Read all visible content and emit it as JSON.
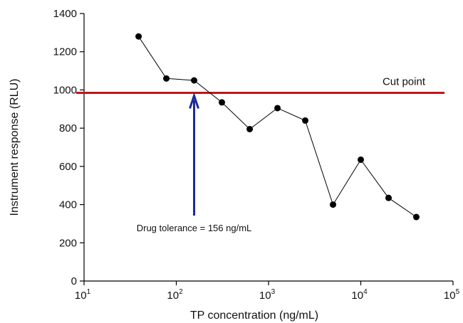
{
  "chart_data": {
    "type": "line",
    "xlabel": "TP concentration (ng/mL)",
    "ylabel": "Instrument response (RLU)",
    "x_scale": "log",
    "xlim": [
      10,
      100000
    ],
    "ylim": [
      0,
      1400
    ],
    "x_ticks": [
      {
        "base": "10",
        "exp": "1",
        "value": 10
      },
      {
        "base": "10",
        "exp": "2",
        "value": 100
      },
      {
        "base": "10",
        "exp": "3",
        "value": 1000
      },
      {
        "base": "10",
        "exp": "4",
        "value": 10000
      },
      {
        "base": "10",
        "exp": "5",
        "value": 100000
      }
    ],
    "y_ticks": [
      0,
      200,
      400,
      600,
      800,
      1000,
      1200,
      1400
    ],
    "series": [
      {
        "x": [
          39,
          78,
          156,
          312,
          625,
          1250,
          2500,
          5000,
          10000,
          20000,
          40000
        ],
        "y": [
          1280,
          1060,
          1050,
          935,
          795,
          905,
          840,
          400,
          635,
          435,
          335
        ]
      }
    ],
    "annotations": {
      "cut_point": {
        "label": "Cut point",
        "y": 985,
        "x_start": 10,
        "x_end": 100000,
        "color": "#c0151a"
      },
      "drug_tolerance": {
        "label": "Drug tolerance = 156 ng/mL",
        "x": 156,
        "y_from": 350,
        "y_to": 985,
        "color": "#1b2a9a"
      }
    },
    "grid": false,
    "legend": "none"
  }
}
